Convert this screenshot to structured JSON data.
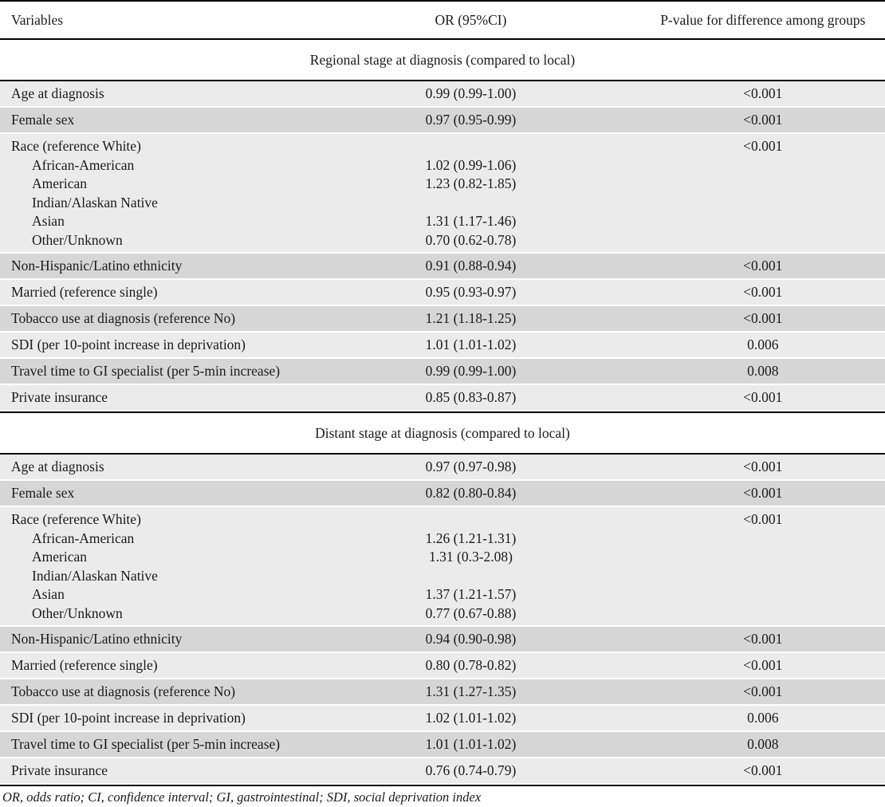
{
  "table": {
    "headers": [
      "Variables",
      "OR (95%CI)",
      "P-value for difference among groups"
    ],
    "footnote": "OR, odds ratio; CI, confidence interval; GI, gastrointestinal; SDI, social deprivation index",
    "sections": [
      {
        "title": "Regional stage at diagnosis (compared to local)",
        "rows": [
          {
            "variable": "Age at diagnosis",
            "or": "0.99 (0.99-1.00)",
            "p": "<0.001"
          },
          {
            "variable": "Female sex",
            "or": "0.97 (0.95-0.99)",
            "p": "<0.001"
          },
          {
            "variable": "Race (reference White)",
            "or": "",
            "p": "<0.001",
            "sublines": [
              {
                "label": "African-American",
                "or": "1.02 (0.99-1.06)"
              },
              {
                "label": "American",
                "or": "1.23 (0.82-1.85)"
              },
              {
                "label": "Indian/Alaskan Native",
                "or": ""
              },
              {
                "label": "Asian",
                "or": "1.31 (1.17-1.46)"
              },
              {
                "label": "Other/Unknown",
                "or": "0.70 (0.62-0.78)"
              }
            ]
          },
          {
            "variable": "Non-Hispanic/Latino ethnicity",
            "or": "0.91 (0.88-0.94)",
            "p": "<0.001"
          },
          {
            "variable": "Married (reference single)",
            "or": "0.95 (0.93-0.97)",
            "p": "<0.001"
          },
          {
            "variable": "Tobacco use at diagnosis (reference No)",
            "or": "1.21 (1.18-1.25)",
            "p": "<0.001"
          },
          {
            "variable": "SDI (per 10-point increase in deprivation)",
            "or": "1.01 (1.01-1.02)",
            "p": "0.006"
          },
          {
            "variable": "Travel time to GI specialist (per 5-min increase)",
            "or": "0.99 (0.99-1.00)",
            "p": "0.008"
          },
          {
            "variable": "Private insurance",
            "or": "0.85 (0.83-0.87)",
            "p": "<0.001"
          }
        ]
      },
      {
        "title": "Distant stage at diagnosis (compared to local)",
        "rows": [
          {
            "variable": "Age at diagnosis",
            "or": "0.97 (0.97-0.98)",
            "p": "<0.001"
          },
          {
            "variable": "Female sex",
            "or": "0.82 (0.80-0.84)",
            "p": "<0.001"
          },
          {
            "variable": "Race (reference White)",
            "or": "",
            "p": "<0.001",
            "sublines": [
              {
                "label": "African-American",
                "or": "1.26 (1.21-1.31)"
              },
              {
                "label": "American",
                "or": "1.31 (0.3-2.08)"
              },
              {
                "label": "Indian/Alaskan Native",
                "or": ""
              },
              {
                "label": "Asian",
                "or": "1.37 (1.21-1.57)"
              },
              {
                "label": "Other/Unknown",
                "or": "0.77 (0.67-0.88)"
              }
            ]
          },
          {
            "variable": "Non-Hispanic/Latino ethnicity",
            "or": "0.94 (0.90-0.98)",
            "p": "<0.001"
          },
          {
            "variable": "Married (reference single)",
            "or": "0.80 (0.78-0.82)",
            "p": "<0.001"
          },
          {
            "variable": "Tobacco use at diagnosis (reference No)",
            "or": "1.31 (1.27-1.35)",
            "p": "<0.001"
          },
          {
            "variable": "SDI (per 10-point increase in deprivation)",
            "or": "1.02 (1.01-1.02)",
            "p": "0.006"
          },
          {
            "variable": "Travel time to GI specialist (per 5-min increase)",
            "or": "1.01 (1.01-1.02)",
            "p": "0.008"
          },
          {
            "variable": "Private insurance",
            "or": "0.76 (0.74-0.79)",
            "p": "<0.001"
          }
        ]
      }
    ]
  },
  "colors": {
    "row_light": "#ebebeb",
    "row_dark": "#d6d6d6",
    "line": "#000000",
    "text": "#1b1b1b"
  }
}
